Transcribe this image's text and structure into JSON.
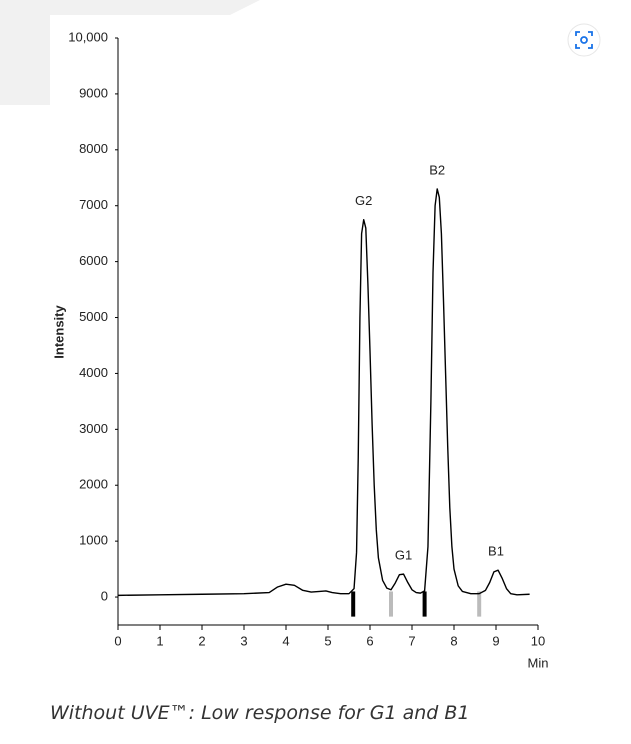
{
  "chart_data": {
    "type": "line",
    "caption": "Without UVE™: Low response for G1 and B1",
    "y_label": "Intensity",
    "x_label": "Min",
    "xlim": [
      0,
      10
    ],
    "xticks": [
      0,
      1,
      2,
      3,
      4,
      5,
      6,
      7,
      8,
      9,
      10
    ],
    "ylim": [
      -500,
      10000
    ],
    "yticks": [
      0,
      1000,
      2000,
      3000,
      4000,
      5000,
      6000,
      7000,
      8000,
      9000,
      {
        "value": 10000,
        "label": "10,000"
      }
    ],
    "x": [
      0,
      1,
      2,
      3,
      3.6,
      3.8,
      4.0,
      4.2,
      4.4,
      4.6,
      4.8,
      4.95,
      5.1,
      5.3,
      5.5,
      5.62,
      5.68,
      5.72,
      5.76,
      5.8,
      5.85,
      5.9,
      5.95,
      6.0,
      6.05,
      6.1,
      6.15,
      6.2,
      6.3,
      6.4,
      6.5,
      6.6,
      6.7,
      6.8,
      6.9,
      7.0,
      7.1,
      7.2,
      7.3,
      7.38,
      7.45,
      7.5,
      7.55,
      7.6,
      7.65,
      7.7,
      7.75,
      7.8,
      7.85,
      7.9,
      7.95,
      8.0,
      8.1,
      8.2,
      8.4,
      8.6,
      8.75,
      8.85,
      8.95,
      9.05,
      9.15,
      9.25,
      9.35,
      9.5,
      9.8
    ],
    "series": [
      {
        "color": "#000000",
        "values": [
          30,
          40,
          50,
          60,
          80,
          180,
          230,
          210,
          120,
          90,
          100,
          110,
          80,
          60,
          60,
          150,
          800,
          2500,
          5000,
          6500,
          6750,
          6600,
          5600,
          4400,
          3100,
          2000,
          1200,
          700,
          300,
          160,
          130,
          250,
          400,
          410,
          260,
          130,
          80,
          70,
          110,
          900,
          3500,
          5800,
          7000,
          7300,
          7150,
          6500,
          5300,
          4000,
          2700,
          1600,
          900,
          500,
          200,
          100,
          60,
          60,
          120,
          260,
          450,
          480,
          330,
          150,
          60,
          40,
          50
        ]
      }
    ],
    "annotations": [
      {
        "text": "G2",
        "x": 5.85,
        "y": 6750
      },
      {
        "text": "G1",
        "x": 6.8,
        "y": 410
      },
      {
        "text": "B2",
        "x": 7.6,
        "y": 7300
      },
      {
        "text": "B1",
        "x": 9.0,
        "y": 480
      }
    ],
    "markers": [
      {
        "x": 5.6,
        "color": "#000000"
      },
      {
        "x": 7.3,
        "color": "#000000"
      },
      {
        "x": 6.5,
        "color": "#bbbbbb"
      },
      {
        "x": 8.6,
        "color": "#bbbbbb"
      }
    ]
  }
}
